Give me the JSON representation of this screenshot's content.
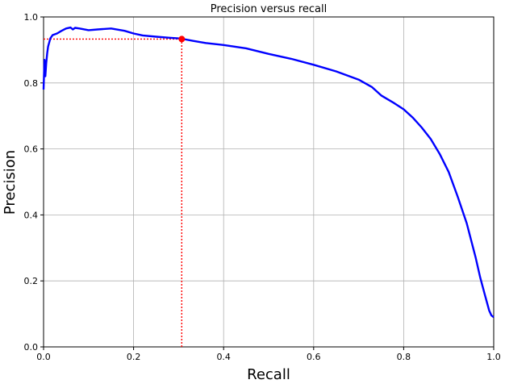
{
  "chart_data": {
    "type": "line",
    "title": "Precision versus recall",
    "xlabel": "Recall",
    "ylabel": "Precision",
    "xlim": [
      0,
      1
    ],
    "ylim": [
      0,
      1
    ],
    "grid": true,
    "xticks": [
      0,
      0.2,
      0.4,
      0.6,
      0.8,
      1
    ],
    "yticks": [
      0,
      0.2,
      0.4,
      0.6,
      0.8,
      1
    ],
    "xtick_labels": [
      "0.0",
      "0.2",
      "0.4",
      "0.6",
      "0.8",
      "1.0"
    ],
    "ytick_labels": [
      "0.0",
      "0.2",
      "0.4",
      "0.6",
      "0.8",
      "1.0"
    ],
    "series": [
      {
        "color": "#0000ff",
        "x": [
          0.0,
          0.002,
          0.004,
          0.006,
          0.008,
          0.01,
          0.015,
          0.02,
          0.03,
          0.04,
          0.05,
          0.06,
          0.065,
          0.07,
          0.08,
          0.1,
          0.12,
          0.15,
          0.18,
          0.2,
          0.22,
          0.25,
          0.28,
          0.3,
          0.307,
          0.33,
          0.36,
          0.4,
          0.45,
          0.5,
          0.55,
          0.6,
          0.65,
          0.7,
          0.73,
          0.75,
          0.78,
          0.8,
          0.82,
          0.84,
          0.86,
          0.88,
          0.9,
          0.92,
          0.94,
          0.96,
          0.97,
          0.98,
          0.99,
          0.995,
          1.0
        ],
        "y": [
          0.78,
          0.87,
          0.82,
          0.86,
          0.89,
          0.91,
          0.935,
          0.945,
          0.95,
          0.958,
          0.965,
          0.968,
          0.962,
          0.967,
          0.965,
          0.96,
          0.962,
          0.965,
          0.958,
          0.95,
          0.944,
          0.94,
          0.937,
          0.935,
          0.934,
          0.928,
          0.921,
          0.915,
          0.905,
          0.888,
          0.873,
          0.855,
          0.835,
          0.81,
          0.787,
          0.762,
          0.738,
          0.72,
          0.695,
          0.665,
          0.63,
          0.585,
          0.53,
          0.455,
          0.375,
          0.27,
          0.21,
          0.16,
          0.11,
          0.095,
          0.09
        ]
      }
    ],
    "threshold_point": {
      "x": 0.307,
      "y": 0.933,
      "color": "#ff0000"
    }
  }
}
